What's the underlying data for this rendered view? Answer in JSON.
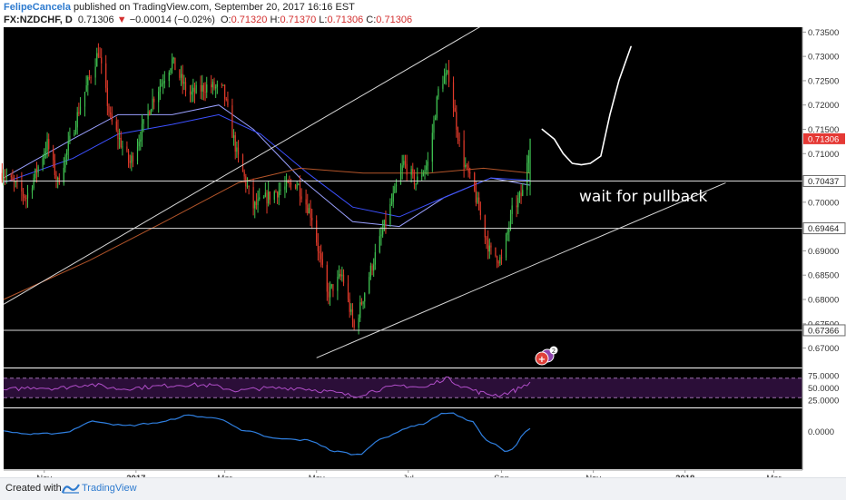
{
  "header": {
    "author": "FelipeCancela",
    "published_text": " published on TradingView.com, September 20, 2017 16:16 EST",
    "symbol": "FX:NZDCHF, D",
    "last": "0.71306",
    "change_arrow": "▼",
    "change": "−0.00014 (−0.02%)",
    "ohlc": [
      {
        "label": "O:",
        "value": "0.71320"
      },
      {
        "label": "H:",
        "value": "0.71370"
      },
      {
        "label": "L:",
        "value": "0.71306"
      },
      {
        "label": "C:",
        "value": "0.71306"
      }
    ]
  },
  "footer": {
    "created_with": "Created with",
    "brand": "TradingView"
  },
  "chart_data": {
    "type": "candlestick",
    "symbol": "FX:NZDCHF",
    "timeframe": "D",
    "y_range": [
      0.666,
      0.736
    ],
    "x_range": [
      "2016-10-05",
      "2018-03-20"
    ],
    "price_ticks": [
      "0.73500",
      "0.73000",
      "0.72500",
      "0.72000",
      "0.71500",
      "0.71000",
      "0.70500",
      "0.70000",
      "0.69500",
      "0.69000",
      "0.68500",
      "0.68000",
      "0.67500",
      "0.67000"
    ],
    "time_ticks": [
      {
        "label": "Nov",
        "date": "2016-11-01"
      },
      {
        "label": "2017",
        "date": "2017-01-01"
      },
      {
        "label": "Mar",
        "date": "2017-03-01"
      },
      {
        "label": "May",
        "date": "2017-05-01"
      },
      {
        "label": "Jul",
        "date": "2017-07-01"
      },
      {
        "label": "Sep",
        "date": "2017-09-01"
      },
      {
        "label": "Nov",
        "date": "2017-11-01"
      },
      {
        "label": "2018",
        "date": "2018-01-01"
      },
      {
        "label": "Mar",
        "date": "2018-03-01"
      }
    ],
    "price_path": [
      [
        "2016-10-05",
        0.706
      ],
      [
        "2016-10-20",
        0.701
      ],
      [
        "2016-11-03",
        0.712
      ],
      [
        "2016-11-10",
        0.704
      ],
      [
        "2016-11-25",
        0.72
      ],
      [
        "2016-12-07",
        0.731
      ],
      [
        "2016-12-15",
        0.717
      ],
      [
        "2016-12-28",
        0.708
      ],
      [
        "2017-01-12",
        0.721
      ],
      [
        "2017-01-25",
        0.729
      ],
      [
        "2017-02-05",
        0.722
      ],
      [
        "2017-02-18",
        0.724
      ],
      [
        "2017-02-28",
        0.723
      ],
      [
        "2017-03-09",
        0.71
      ],
      [
        "2017-03-20",
        0.699
      ],
      [
        "2017-04-03",
        0.702
      ],
      [
        "2017-04-18",
        0.704
      ],
      [
        "2017-04-28",
        0.697
      ],
      [
        "2017-05-08",
        0.681
      ],
      [
        "2017-05-18",
        0.685
      ],
      [
        "2017-05-26",
        0.674
      ],
      [
        "2017-06-06",
        0.686
      ],
      [
        "2017-06-20",
        0.7
      ],
      [
        "2017-06-28",
        0.708
      ],
      [
        "2017-07-06",
        0.704
      ],
      [
        "2017-07-14",
        0.708
      ],
      [
        "2017-07-22",
        0.725
      ],
      [
        "2017-07-28",
        0.726
      ],
      [
        "2017-08-05",
        0.71
      ],
      [
        "2017-08-14",
        0.702
      ],
      [
        "2017-08-24",
        0.69
      ],
      [
        "2017-09-01",
        0.688
      ],
      [
        "2017-09-08",
        0.698
      ],
      [
        "2017-09-15",
        0.702
      ],
      [
        "2017-09-20",
        0.71306
      ]
    ],
    "moving_averages": [
      {
        "color": "#9aa0ff",
        "points": [
          [
            "2016-10-05",
            0.705
          ],
          [
            "2016-11-20",
            0.713
          ],
          [
            "2016-12-20",
            0.718
          ],
          [
            "2017-01-25",
            0.718
          ],
          [
            "2017-02-25",
            0.72
          ],
          [
            "2017-03-20",
            0.715
          ],
          [
            "2017-04-20",
            0.705
          ],
          [
            "2017-05-25",
            0.696
          ],
          [
            "2017-06-25",
            0.695
          ],
          [
            "2017-07-25",
            0.701
          ],
          [
            "2017-08-25",
            0.705
          ],
          [
            "2017-09-20",
            0.7035
          ]
        ]
      },
      {
        "color": "#3c50ff",
        "points": [
          [
            "2016-10-05",
            0.704
          ],
          [
            "2016-11-20",
            0.709
          ],
          [
            "2016-12-20",
            0.714
          ],
          [
            "2017-01-25",
            0.716
          ],
          [
            "2017-02-25",
            0.718
          ],
          [
            "2017-03-25",
            0.714
          ],
          [
            "2017-04-25",
            0.706
          ],
          [
            "2017-05-25",
            0.699
          ],
          [
            "2017-06-25",
            0.697
          ],
          [
            "2017-07-25",
            0.701
          ],
          [
            "2017-08-25",
            0.705
          ],
          [
            "2017-09-20",
            0.7045
          ]
        ]
      },
      {
        "color": "#b4552a",
        "points": [
          [
            "2016-10-05",
            0.68
          ],
          [
            "2016-12-01",
            0.688
          ],
          [
            "2017-01-20",
            0.696
          ],
          [
            "2017-03-10",
            0.704
          ],
          [
            "2017-04-20",
            0.707
          ],
          [
            "2017-06-01",
            0.706
          ],
          [
            "2017-07-15",
            0.706
          ],
          [
            "2017-08-20",
            0.707
          ],
          [
            "2017-09-20",
            0.706
          ]
        ]
      }
    ],
    "horizontal_levels": [
      {
        "value": 0.70437,
        "label": "0.70437"
      },
      {
        "value": 0.69464,
        "label": "0.69464"
      },
      {
        "value": 0.67366,
        "label": "0.67366"
      }
    ],
    "current_price": {
      "value": 0.71306,
      "label": "0.71306"
    },
    "trendlines": [
      {
        "from": [
          "2016-10-05",
          0.679
        ],
        "to": [
          "2017-08-20",
          0.7365
        ]
      },
      {
        "from": [
          "2017-05-01",
          0.668
        ],
        "to": [
          "2018-01-28",
          0.704
        ]
      }
    ],
    "annotations": [
      {
        "text": "wait for pullback"
      }
    ],
    "projection_path": [
      [
        "2017-09-28",
        0.715
      ],
      [
        "2017-10-06",
        0.713
      ],
      [
        "2017-10-12",
        0.71
      ],
      [
        "2017-10-18",
        0.708
      ],
      [
        "2017-10-24",
        0.7077
      ],
      [
        "2017-10-30",
        0.708
      ],
      [
        "2017-11-06",
        0.7095
      ],
      [
        "2017-11-12",
        0.718
      ],
      [
        "2017-11-18",
        0.725
      ],
      [
        "2017-11-26",
        0.732
      ]
    ],
    "events_badge": {
      "count": "2"
    },
    "rsi": {
      "range": [
        10,
        90
      ],
      "ticks": [
        "75.0000",
        "50.0000",
        "25.0000"
      ],
      "overbought": 70,
      "oversold": 30,
      "path": [
        [
          "2016-10-05",
          45
        ],
        [
          "2016-10-25",
          52
        ],
        [
          "2016-11-10",
          49
        ],
        [
          "2016-12-01",
          58
        ],
        [
          "2016-12-20",
          48
        ],
        [
          "2017-01-10",
          52
        ],
        [
          "2017-02-01",
          57
        ],
        [
          "2017-02-20",
          55
        ],
        [
          "2017-03-10",
          44
        ],
        [
          "2017-03-25",
          49
        ],
        [
          "2017-04-20",
          50
        ],
        [
          "2017-05-10",
          42
        ],
        [
          "2017-05-26",
          33
        ],
        [
          "2017-06-10",
          46
        ],
        [
          "2017-06-28",
          55
        ],
        [
          "2017-07-12",
          50
        ],
        [
          "2017-07-26",
          71
        ],
        [
          "2017-08-05",
          55
        ],
        [
          "2017-08-18",
          40
        ],
        [
          "2017-08-30",
          35
        ],
        [
          "2017-09-10",
          45
        ],
        [
          "2017-09-20",
          62
        ]
      ]
    },
    "macd": {
      "range": [
        -0.013,
        0.008
      ],
      "ticks": [
        "0.0000"
      ],
      "path": [
        [
          "2016-10-05",
          0.0
        ],
        [
          "2016-10-25",
          -0.001
        ],
        [
          "2016-11-12",
          -0.0005
        ],
        [
          "2016-12-05",
          0.0035
        ],
        [
          "2016-12-25",
          0.002
        ],
        [
          "2017-01-15",
          0.003
        ],
        [
          "2017-02-05",
          0.0055
        ],
        [
          "2017-02-25",
          0.0045
        ],
        [
          "2017-03-15",
          0.0
        ],
        [
          "2017-04-05",
          -0.0025
        ],
        [
          "2017-04-25",
          -0.003
        ],
        [
          "2017-05-15",
          -0.007
        ],
        [
          "2017-05-28",
          -0.008
        ],
        [
          "2017-06-15",
          -0.002
        ],
        [
          "2017-07-05",
          0.002
        ],
        [
          "2017-07-28",
          0.0065
        ],
        [
          "2017-08-10",
          0.004
        ],
        [
          "2017-08-25",
          -0.004
        ],
        [
          "2017-09-05",
          -0.007
        ],
        [
          "2017-09-20",
          0.001
        ]
      ]
    }
  }
}
